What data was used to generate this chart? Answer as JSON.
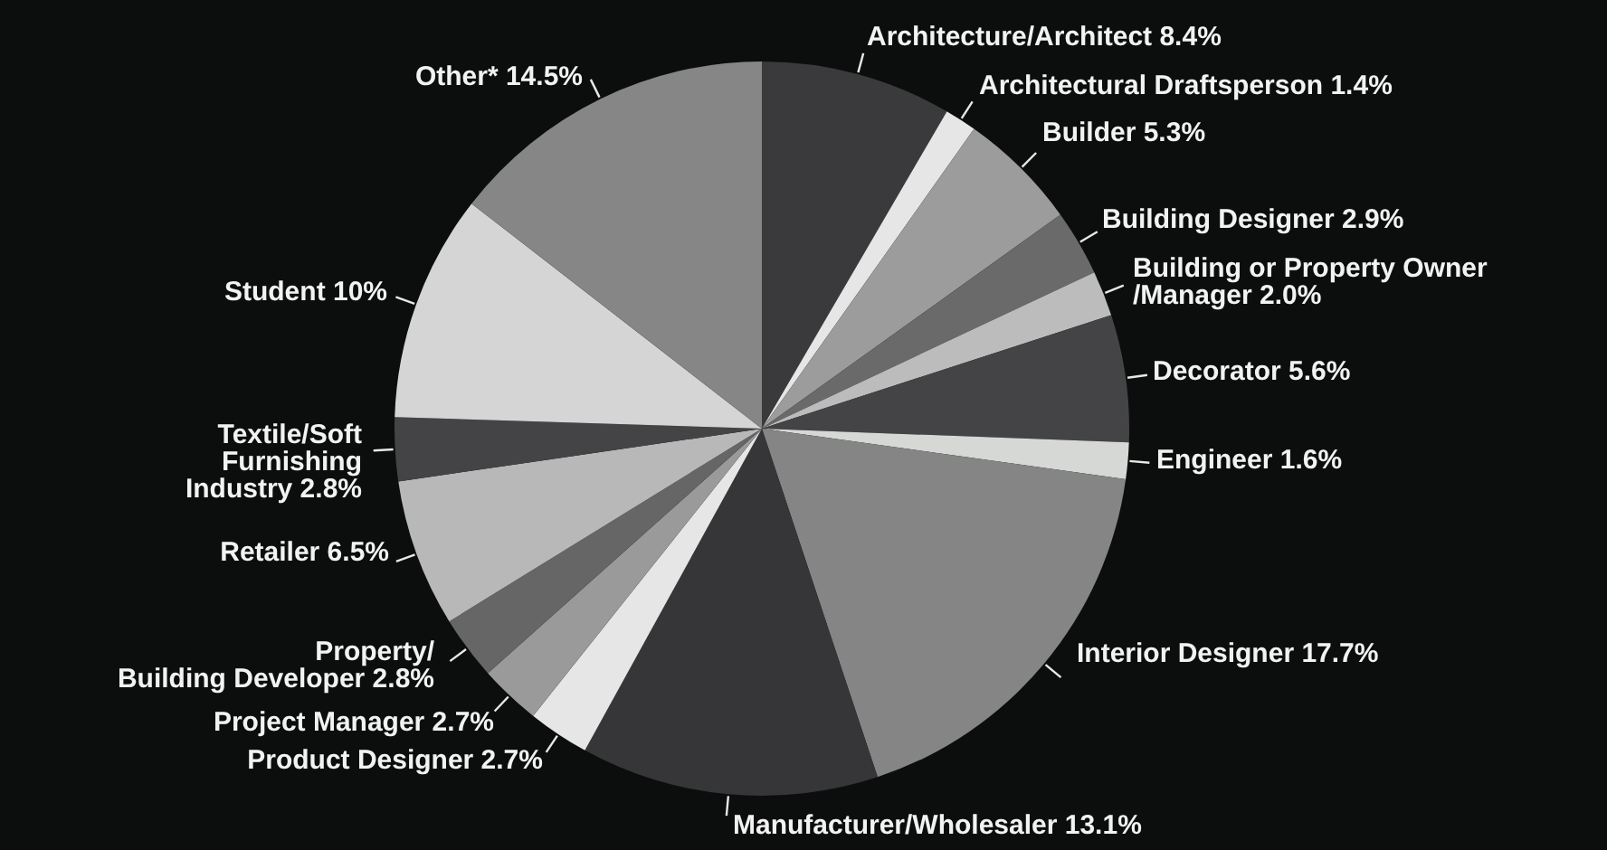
{
  "chart_data": {
    "type": "pie",
    "categories": [
      "Architecture/Architect",
      "Architectural Draftsperson",
      "Builder",
      "Building Designer",
      "Building or Property Owner\n/Manager",
      "Decorator",
      "Engineer",
      "Interior Designer",
      "Manufacturer/Wholesaler",
      "Product Designer",
      "Project Manager",
      "Property/\nBuilding Developer",
      "Retailer",
      "Textile/Soft\nFurnishing\nIndustry",
      "Student",
      "Other*"
    ],
    "values": [
      8.4,
      1.4,
      5.3,
      2.9,
      2.0,
      5.6,
      1.6,
      17.7,
      13.1,
      2.7,
      2.7,
      2.8,
      6.5,
      2.8,
      10,
      14.5
    ],
    "value_labels": [
      "8.4%",
      "1.4%",
      "5.3%",
      "2.9%",
      "2.0%",
      "5.6%",
      "1.6%",
      "17.7%",
      "13.1%",
      "2.7%",
      "2.7%",
      "2.8%",
      "6.5%",
      "2.8%",
      "10%",
      "14.5%"
    ],
    "colors": [
      "#3a3a3c",
      "#e6e6e6",
      "#9c9c9c",
      "#6a6a6a",
      "#bcbcbc",
      "#444446",
      "#d6d8d6",
      "#858585",
      "#363638",
      "#e6e6e6",
      "#9a9a9a",
      "#666666",
      "#b8b8b8",
      "#444446",
      "#d4d5d4",
      "#868686"
    ]
  }
}
